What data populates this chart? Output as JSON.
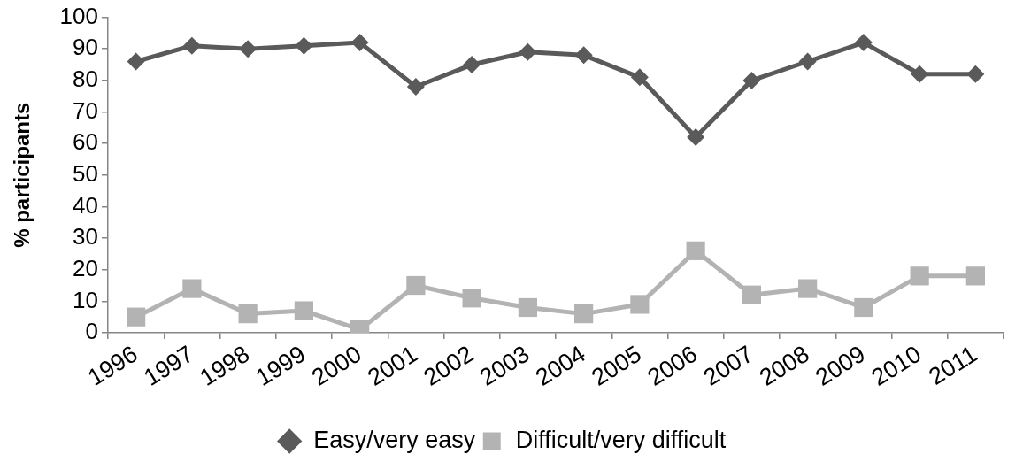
{
  "chart_data": {
    "type": "line",
    "ylabel": "% participants",
    "categories": [
      "1996",
      "1997",
      "1998",
      "1999",
      "2000",
      "2001",
      "2002",
      "2003",
      "2004",
      "2005",
      "2006",
      "2007",
      "2008",
      "2009",
      "2010",
      "2011"
    ],
    "series": [
      {
        "name": "Easy/very easy",
        "color": "#5a5a5a",
        "marker": "diamond",
        "values": [
          86,
          91,
          90,
          91,
          92,
          78,
          85,
          89,
          88,
          81,
          62,
          80,
          86,
          92,
          82,
          82
        ]
      },
      {
        "name": "Difficult/very difficult",
        "color": "#b3b3b3",
        "marker": "square",
        "values": [
          5,
          14,
          6,
          7,
          1,
          15,
          11,
          8,
          6,
          9,
          26,
          12,
          14,
          8,
          18,
          18
        ]
      }
    ],
    "ylim": [
      0,
      100
    ],
    "yticks": [
      0,
      10,
      20,
      30,
      40,
      50,
      60,
      70,
      80,
      90,
      100
    ],
    "grid": false,
    "legend": "bottom"
  }
}
